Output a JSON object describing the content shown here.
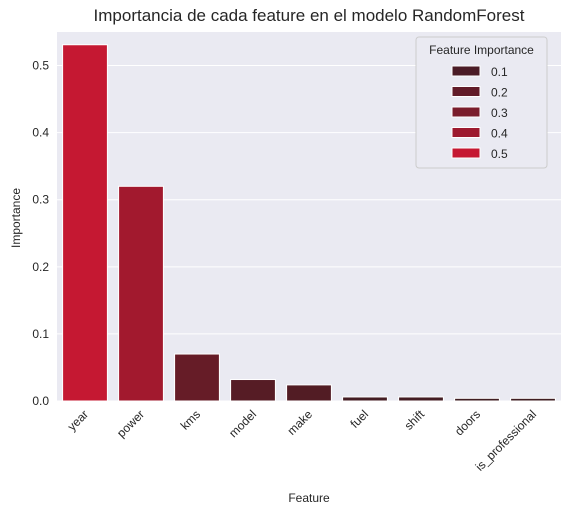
{
  "chart_data": {
    "type": "bar",
    "title": "Importancia de cada feature en el modelo RandomForest",
    "xlabel": "Feature",
    "ylabel": "Importance",
    "categories": [
      "year",
      "power",
      "kms",
      "model",
      "make",
      "fuel",
      "shift",
      "doors",
      "is_professional"
    ],
    "values": [
      0.531,
      0.32,
      0.07,
      0.032,
      0.024,
      0.006,
      0.006,
      0.004,
      0.004
    ],
    "ylim": [
      0,
      0.55
    ],
    "yticks": [
      "0.0",
      "0.1",
      "0.2",
      "0.3",
      "0.4",
      "0.5"
    ],
    "grid": true,
    "background": "#eaeaf2",
    "legend": {
      "title": "Feature Importance",
      "placement": "top-right",
      "entries": [
        {
          "label": "0.1",
          "color": "#4b1c26"
        },
        {
          "label": "0.2",
          "color": "#621c29"
        },
        {
          "label": "0.3",
          "color": "#7a1d2c"
        },
        {
          "label": "0.4",
          "color": "#9d1a2f"
        },
        {
          "label": "0.5",
          "color": "#c51832"
        }
      ]
    },
    "palette": {
      "low": "#3f1d22",
      "high": "#c51832"
    }
  }
}
